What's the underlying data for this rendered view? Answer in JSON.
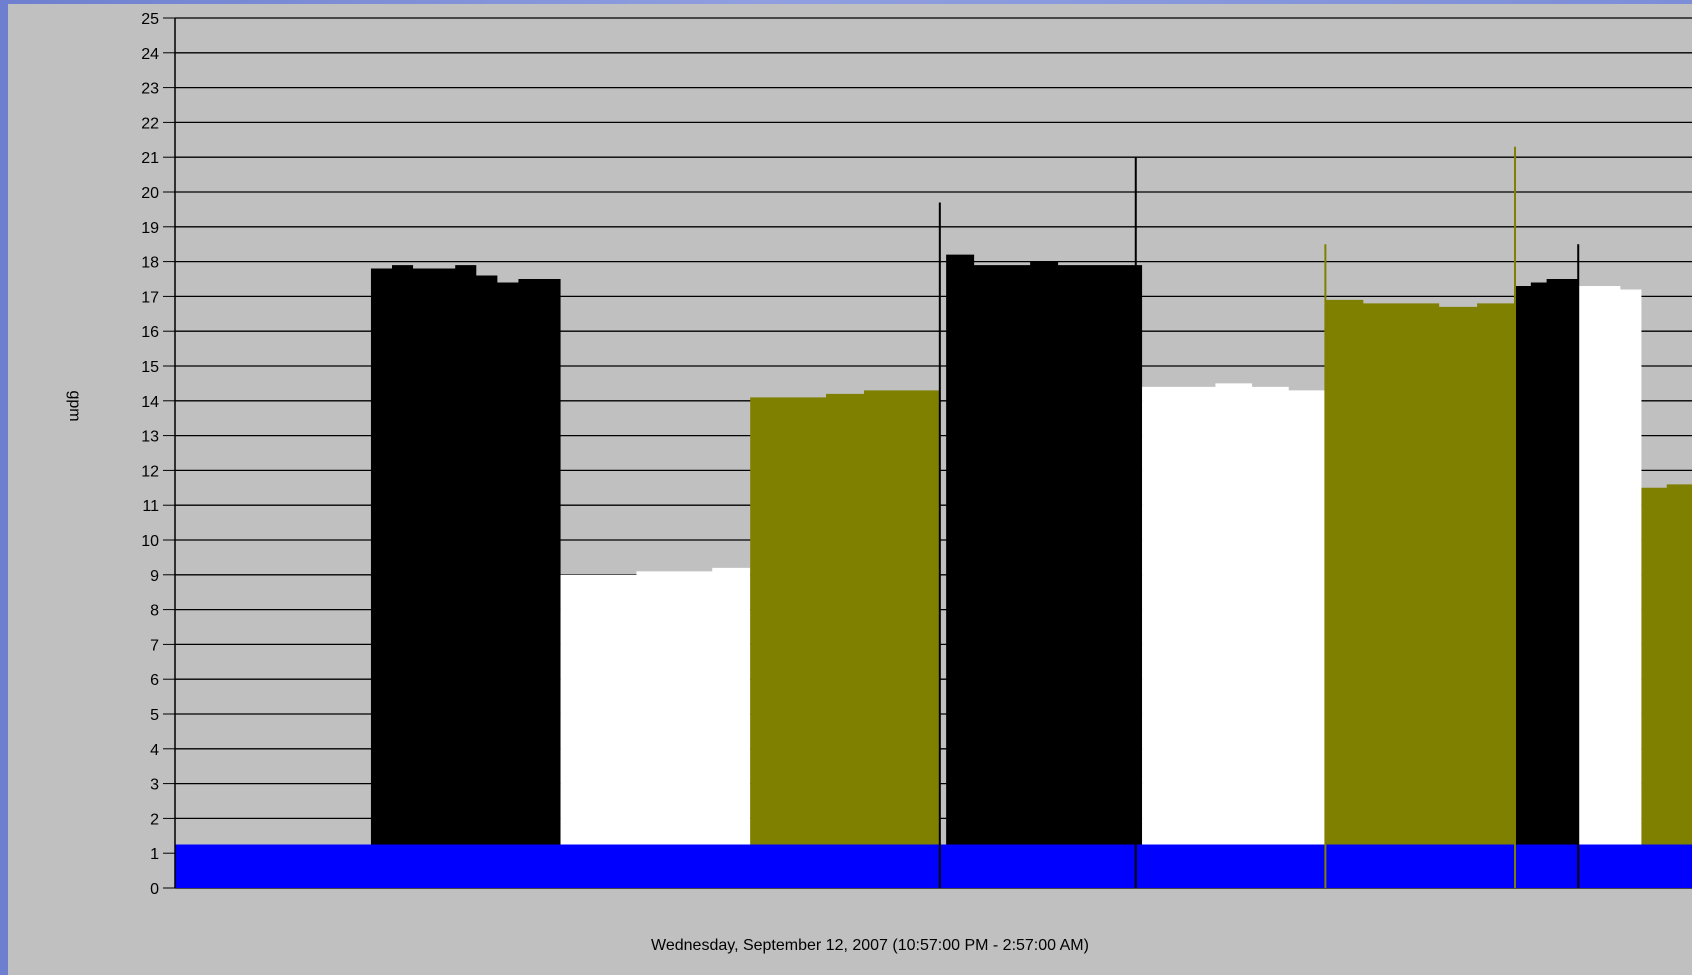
{
  "chart_data": {
    "type": "area",
    "ylabel": "gpm",
    "xlabel": "Wednesday, September 12, 2007 (10:57:00 PM - 2:57:00 AM)",
    "ylim": [
      0,
      25
    ],
    "xlim": [
      0,
      240
    ],
    "y_ticks": [
      "0",
      "1",
      "2",
      "3",
      "4",
      "5",
      "6",
      "7",
      "8",
      "9",
      "10",
      "11",
      "12",
      "13",
      "14",
      "15",
      "16",
      "17",
      "18",
      "19",
      "20",
      "21",
      "22",
      "23",
      "24",
      "25"
    ],
    "grid": true,
    "colors": {
      "background": "#c0c0c0",
      "grid": "#000000",
      "black_series": "#000000",
      "white_series": "#ffffff",
      "olive_series": "#808000",
      "blue_series": "#0000ff"
    },
    "x_unit": "minutes from 10:57:00 PM",
    "series": [
      {
        "color": "black",
        "segments": [
          {
            "x_start": 31,
            "x_end": 61,
            "values": [
              17.8,
              17.9,
              17.8,
              17.8,
              17.9,
              17.6,
              17.4,
              17.5,
              17.5
            ]
          },
          {
            "x_start": 122,
            "x_end": 153,
            "values": [
              18.2,
              17.9,
              17.9,
              18.0,
              17.9,
              17.9,
              17.9
            ]
          },
          {
            "x_start": 212,
            "x_end": 222,
            "values": [
              17.3,
              17.4,
              17.5,
              17.5
            ]
          }
        ]
      },
      {
        "color": "white",
        "segments": [
          {
            "x_start": 61,
            "x_end": 91,
            "values": [
              9.0,
              9.0,
              9.1,
              9.1,
              9.2
            ]
          },
          {
            "x_start": 153,
            "x_end": 182,
            "values": [
              14.4,
              14.4,
              14.5,
              14.4,
              14.3
            ]
          },
          {
            "x_start": 222,
            "x_end": 232,
            "values": [
              17.3,
              17.3,
              17.2
            ]
          }
        ]
      },
      {
        "color": "olive",
        "segments": [
          {
            "x_start": 91,
            "x_end": 121,
            "values": [
              14.1,
              14.1,
              14.2,
              14.3,
              14.3
            ]
          },
          {
            "x_start": 182,
            "x_end": 212,
            "values": [
              16.9,
              16.8,
              16.8,
              16.7,
              16.8
            ]
          },
          {
            "x_start": 232,
            "x_end": 240,
            "values": [
              11.5,
              11.6
            ]
          }
        ]
      },
      {
        "color": "blue",
        "segments": [
          {
            "x_start": 0,
            "x_end": 240,
            "values": [
              1.25,
              1.25
            ]
          }
        ]
      }
    ],
    "spikes": [
      {
        "x": 121,
        "value": 19.7,
        "color": "black"
      },
      {
        "x": 152,
        "value": 21.0,
        "color": "black"
      },
      {
        "x": 182,
        "value": 18.5,
        "color": "olive"
      },
      {
        "x": 212,
        "value": 21.3,
        "color": "olive"
      },
      {
        "x": 222,
        "value": 18.5,
        "color": "black"
      }
    ]
  }
}
